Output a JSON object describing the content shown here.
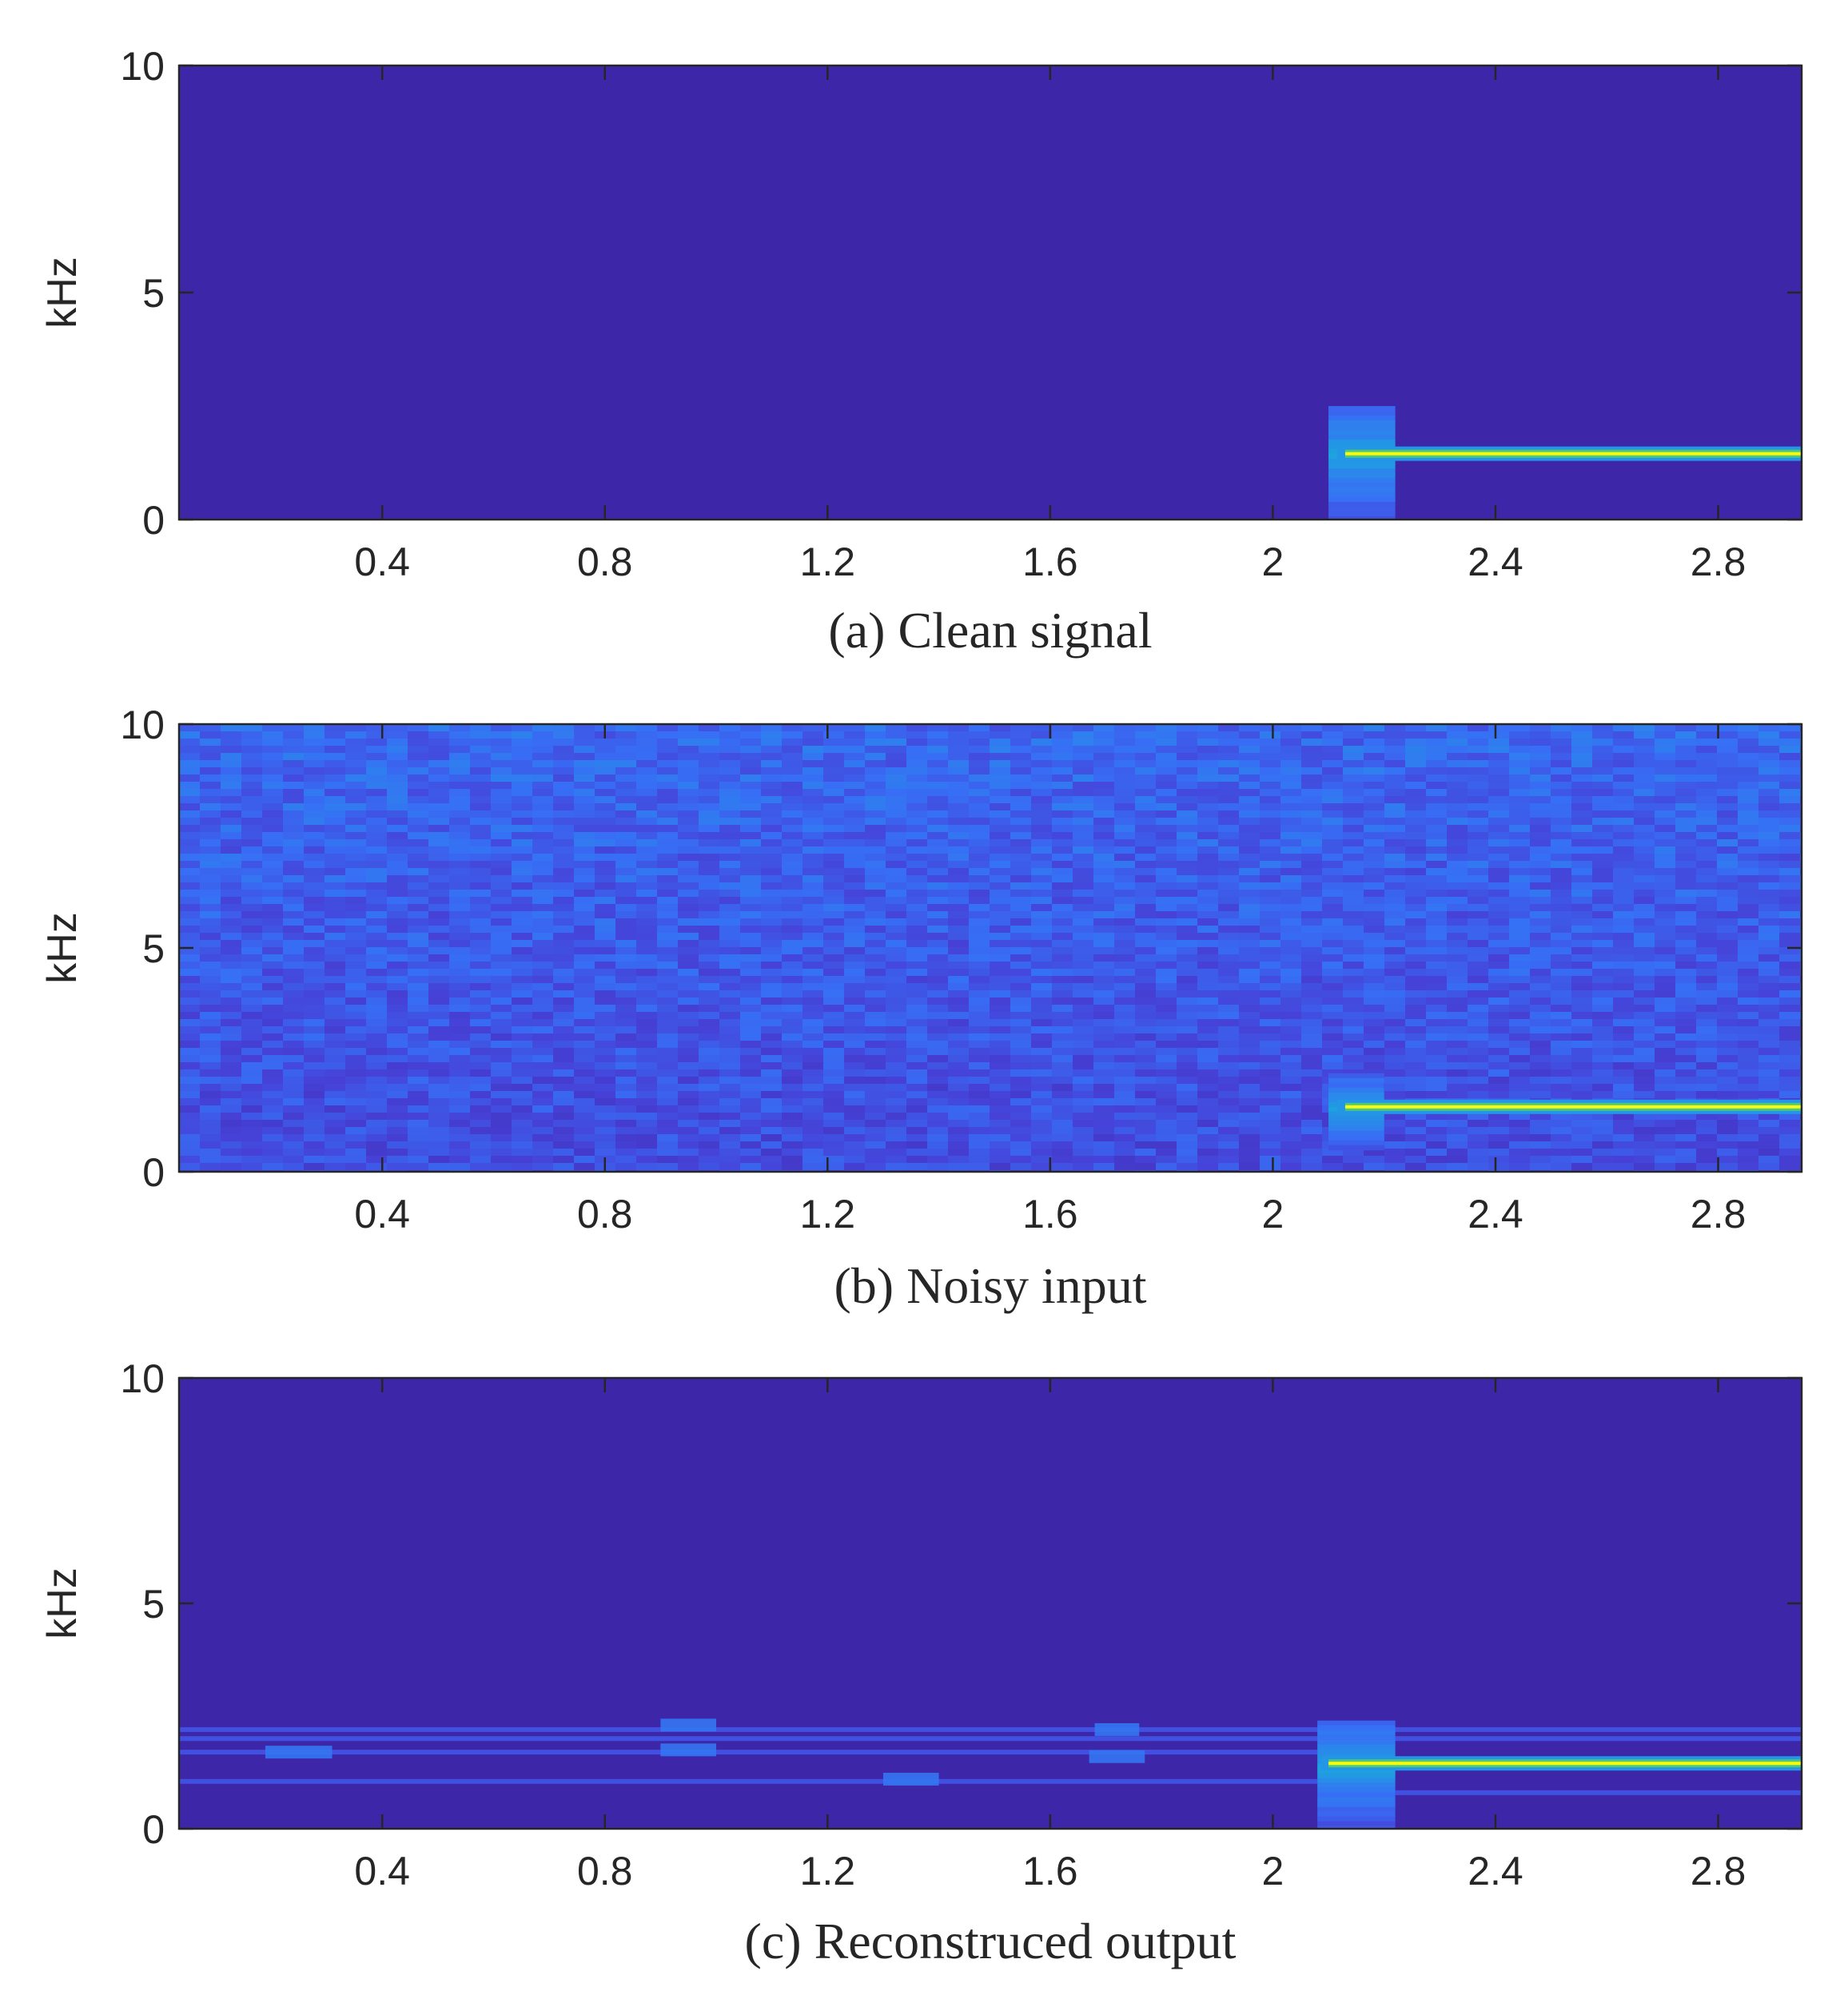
{
  "chart_data": [
    {
      "type": "heatmap",
      "caption": "(a) Clean signal",
      "ylabel": "kHz",
      "xlabel": "",
      "xlim": [
        0.035,
        2.95
      ],
      "ylim": [
        0,
        10
      ],
      "xticks": [
        0.4,
        0.8,
        1.2,
        1.6,
        2,
        2.4,
        2.8
      ],
      "xtick_labels": [
        "0.4",
        "0.8",
        "1.2",
        "1.6",
        "2",
        "2.4",
        "2.8"
      ],
      "yticks": [
        0,
        5,
        10
      ],
      "ytick_labels": [
        "0",
        "5",
        "10"
      ],
      "colormap": "parula",
      "background_color": "#3d26a8",
      "noise_level": 0,
      "tone": {
        "frequency_khz": 1.45,
        "start_s": 2.13,
        "end_s": 2.95,
        "peak_color": "#f9fb0e"
      },
      "onset_burst": {
        "t_start_s": 2.1,
        "t_end_s": 2.22,
        "f_low_khz": 0.0,
        "f_high_khz": 2.5
      },
      "harmonic_bands": []
    },
    {
      "type": "heatmap",
      "caption": "(b) Noisy input",
      "ylabel": "kHz",
      "xlabel": "",
      "xlim": [
        0.035,
        2.95
      ],
      "ylim": [
        0,
        10
      ],
      "xticks": [
        0.4,
        0.8,
        1.2,
        1.6,
        2,
        2.4,
        2.8
      ],
      "xtick_labels": [
        "0.4",
        "0.8",
        "1.2",
        "1.6",
        "2",
        "2.4",
        "2.8"
      ],
      "yticks": [
        0,
        5,
        10
      ],
      "ytick_labels": [
        "0",
        "5",
        "10"
      ],
      "colormap": "parula",
      "background_color": "#3d26a8",
      "noise_level": 1,
      "tone": {
        "frequency_khz": 1.45,
        "start_s": 2.13,
        "end_s": 2.95,
        "peak_color": "#f9fb0e"
      },
      "onset_burst": {
        "t_start_s": 2.1,
        "t_end_s": 2.2,
        "f_low_khz": 0.5,
        "f_high_khz": 2.2
      },
      "harmonic_bands": []
    },
    {
      "type": "heatmap",
      "caption": "(c) Reconstruced output",
      "ylabel": "kHz",
      "xlabel": "",
      "xlim": [
        0.035,
        2.95
      ],
      "ylim": [
        0,
        10
      ],
      "xticks": [
        0.4,
        0.8,
        1.2,
        1.6,
        2,
        2.4,
        2.8
      ],
      "xtick_labels": [
        "0.4",
        "0.8",
        "1.2",
        "1.6",
        "2",
        "2.4",
        "2.8"
      ],
      "yticks": [
        0,
        5,
        10
      ],
      "ytick_labels": [
        "0",
        "5",
        "10"
      ],
      "colormap": "parula",
      "background_color": "#3d26a8",
      "noise_level": 0,
      "tone": {
        "frequency_khz": 1.45,
        "start_s": 2.1,
        "end_s": 2.95,
        "peak_color": "#f9fb0e"
      },
      "onset_burst": {
        "t_start_s": 2.08,
        "t_end_s": 2.22,
        "f_low_khz": 0.0,
        "f_high_khz": 2.4
      },
      "harmonic_bands": [
        {
          "frequency_khz": 2.2,
          "t_start_s": 0.035,
          "t_end_s": 2.95
        },
        {
          "frequency_khz": 2.0,
          "t_start_s": 0.035,
          "t_end_s": 2.95
        },
        {
          "frequency_khz": 1.7,
          "t_start_s": 0.035,
          "t_end_s": 2.08
        },
        {
          "frequency_khz": 1.05,
          "t_start_s": 0.035,
          "t_end_s": 2.08
        },
        {
          "frequency_khz": 0.8,
          "t_start_s": 2.22,
          "t_end_s": 2.95
        }
      ]
    }
  ]
}
